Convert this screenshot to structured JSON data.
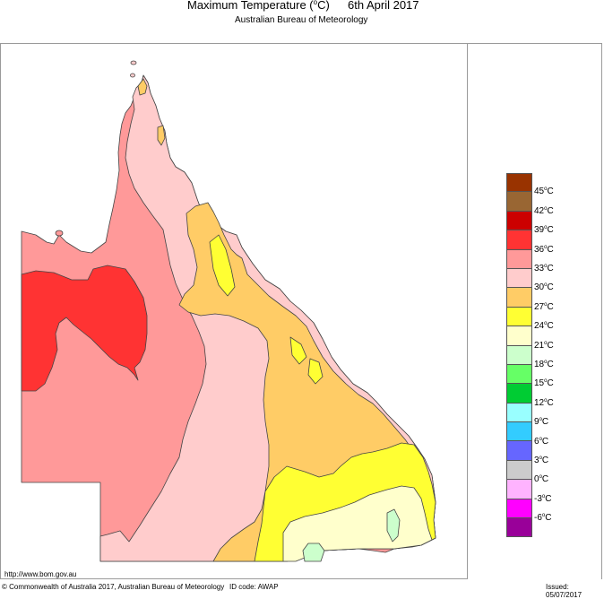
{
  "header": {
    "title": "Maximum Temperature (",
    "title_unit_sup": "o",
    "title_unit_tail": "C)",
    "date": "6th April 2017",
    "subtitle": "Australian Bureau of Meteorology"
  },
  "legend": {
    "bands": [
      {
        "color": "#993300",
        "label": ""
      },
      {
        "color": "#996633",
        "label": "45"
      },
      {
        "color": "#cc0000",
        "label": "42"
      },
      {
        "color": "#ff3333",
        "label": "39"
      },
      {
        "color": "#ff9999",
        "label": "36"
      },
      {
        "color": "#ffcccc",
        "label": "33"
      },
      {
        "color": "#ffcc66",
        "label": "30"
      },
      {
        "color": "#ffff33",
        "label": "27"
      },
      {
        "color": "#ffffcc",
        "label": "24"
      },
      {
        "color": "#ccffcc",
        "label": "21"
      },
      {
        "color": "#66ff66",
        "label": "18"
      },
      {
        "color": "#00cc33",
        "label": "15"
      },
      {
        "color": "#99ffff",
        "label": "12"
      },
      {
        "color": "#33ccff",
        "label": "9"
      },
      {
        "color": "#6666ff",
        "label": "6"
      },
      {
        "color": "#cccccc",
        "label": "3"
      },
      {
        "color": "#ffb3ff",
        "label": "0"
      },
      {
        "color": "#ff00ff",
        "label": "-3"
      },
      {
        "color": "#990099",
        "label": "-6"
      }
    ],
    "labels": [
      "45°C",
      "42°C",
      "39°C",
      "36°C",
      "33°C",
      "30°C",
      "27°C",
      "24°C",
      "21°C",
      "18°C",
      "15°C",
      "12°C",
      "9°C",
      "6°C",
      "3°C",
      "0°C",
      "-3°C",
      "-6°C"
    ]
  },
  "map": {
    "region": "Queensland",
    "zones": [
      {
        "range": "36-39°C",
        "color": "#ff3333",
        "area": "north-west Gulf region"
      },
      {
        "range": "33-36°C",
        "color": "#ff9999",
        "area": "western Queensland"
      },
      {
        "range": "30-33°C",
        "color": "#ffcccc",
        "area": "Cape York / central"
      },
      {
        "range": "27-30°C",
        "color": "#ffcc66",
        "area": "east coast / central east"
      },
      {
        "range": "24-27°C",
        "color": "#ffff33",
        "area": "south-east inland & ranges"
      },
      {
        "range": "21-24°C",
        "color": "#ffffcc",
        "area": "Darling Downs / south-east"
      },
      {
        "range": "18-21°C",
        "color": "#ccffcc",
        "area": "Granite Belt high ground"
      }
    ]
  },
  "footer": {
    "url": "http://www.bom.gov.au",
    "copyright": "© Commonwealth of Australia 2017, Australian Bureau of Meteorology",
    "id_code": "ID code: AWAP",
    "issued": "Issued: 05/07/2017"
  }
}
